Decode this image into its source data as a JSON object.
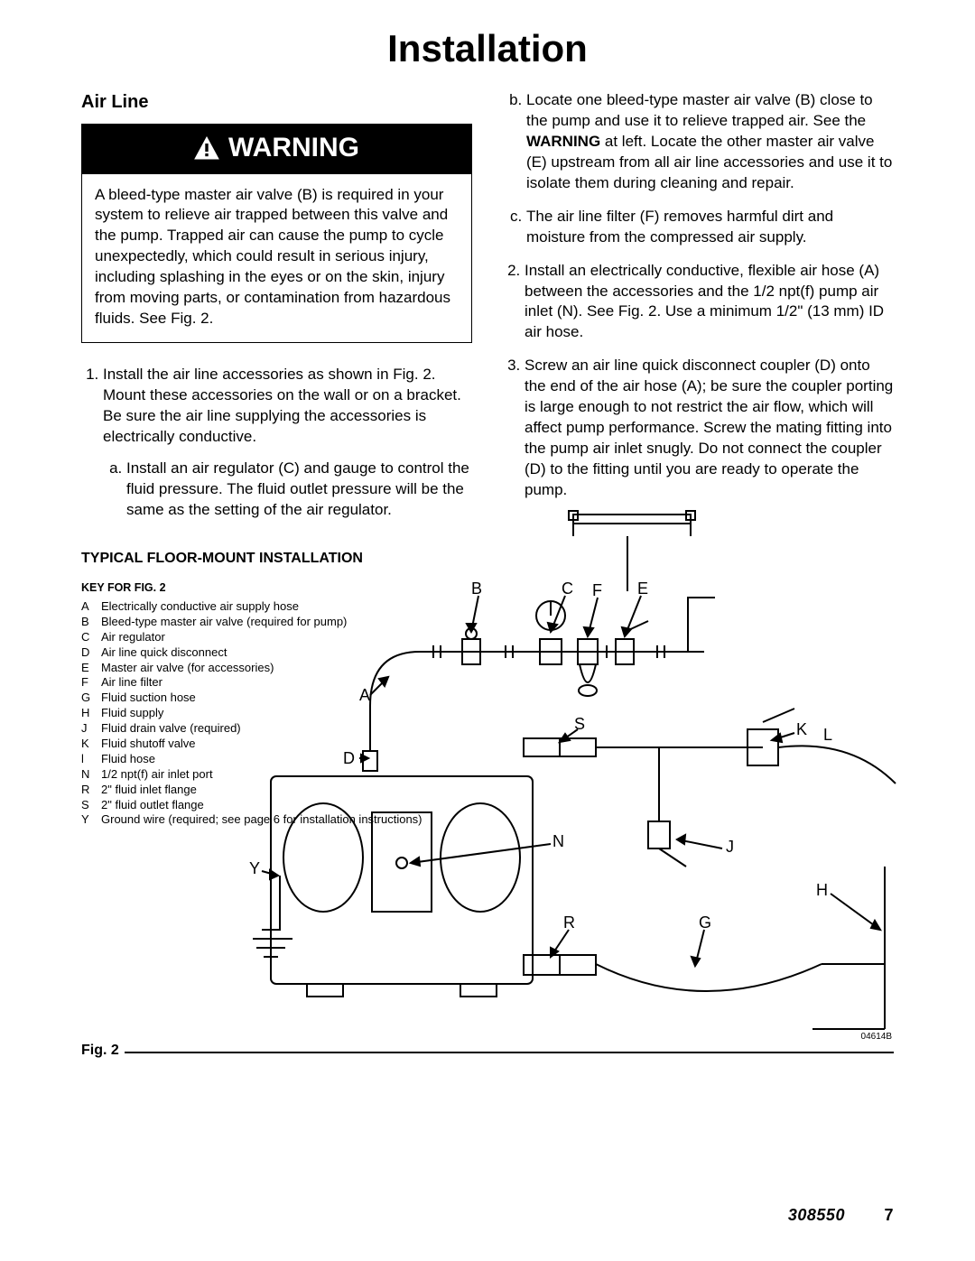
{
  "title": "Installation",
  "left": {
    "heading": "Air Line",
    "warning_label": "WARNING",
    "warning_body": "A bleed-type master air valve (B) is required in your system to relieve air trapped between this valve and the pump. Trapped air can cause the pump to cycle unexpectedly, which could result in serious injury, including splashing in the eyes or on the skin, injury from moving parts, or contamination from hazardous fluids. See Fig. 2.",
    "step1": "Install the air line accessories as shown in Fig. 2. Mount these accessories on the wall or on a bracket. Be sure the air line supplying the accessories is electrically conductive.",
    "step1a": "Install an air regulator (C) and gauge to control the fluid pressure. The fluid outlet pressure will be the same as the setting of the air regulator."
  },
  "right": {
    "b": "Locate one bleed-type master air valve (B) close to the pump and use it to relieve trapped air. See the WARNING at left. Locate the other master air valve (E) upstream from all air line accessories and use it to isolate them during cleaning and repair.",
    "b_prefix": "Locate one bleed-type master air valve (B) close to the pump and use it to relieve trapped air. See the ",
    "b_bold": "WARNING",
    "b_suffix": " at left. Locate the other master air valve (E) upstream from all air line accessories and use it to isolate them during cleaning and repair.",
    "c": "The air line filter (F) removes harmful dirt and moisture from the compressed air supply.",
    "step2": "Install an electrically conductive, flexible air hose (A) between the accessories and the 1/2 npt(f) pump air inlet (N). See Fig. 2. Use a minimum 1/2\" (13 mm) ID air hose.",
    "step3": "Screw an air line quick disconnect coupler (D) onto the end of the air hose (A); be sure the coupler porting is large enough to not restrict the air flow, which will affect pump performance. Screw the mating fitting into the pump air inlet snugly. Do not connect the coupler (D) to the fitting until you are ready to operate the pump."
  },
  "lower": {
    "heading": "TYPICAL FLOOR-MOUNT INSTALLATION",
    "key_heading": "KEY FOR FIG. 2",
    "keys": [
      {
        "k": "A",
        "d": "Electrically conductive air supply hose"
      },
      {
        "k": "B",
        "d": "Bleed-type master air valve (required for pump)"
      },
      {
        "k": "C",
        "d": "Air regulator"
      },
      {
        "k": "D",
        "d": "Air line quick disconnect"
      },
      {
        "k": "E",
        "d": "Master air valve (for accessories)"
      },
      {
        "k": "F",
        "d": "Air line filter"
      },
      {
        "k": "G",
        "d": "Fluid suction hose"
      },
      {
        "k": "H",
        "d": "Fluid supply"
      },
      {
        "k": "J",
        "d": "Fluid drain valve (required)"
      },
      {
        "k": "K",
        "d": "Fluid shutoff valve"
      },
      {
        "k": "l",
        "d": "Fluid hose"
      },
      {
        "k": "N",
        "d": "1/2 npt(f) air inlet port"
      },
      {
        "k": "R",
        "d": "2\" fluid inlet flange"
      },
      {
        "k": "S",
        "d": "2\" fluid outlet flange"
      },
      {
        "k": "Y",
        "d": "Ground wire (required; see page 6 for installation instructions)"
      }
    ]
  },
  "fig": {
    "label": "Fig. 2",
    "code": "04614B"
  },
  "footer": {
    "doc": "308550",
    "page": "7"
  },
  "callouts": {
    "B": "B",
    "C": "C",
    "F": "F",
    "E": "E",
    "A": "A",
    "S": "S",
    "K": "K",
    "L": "L",
    "D": "D",
    "N": "N",
    "J": "J",
    "Y": "Y",
    "H": "H",
    "R": "R",
    "G": "G"
  }
}
